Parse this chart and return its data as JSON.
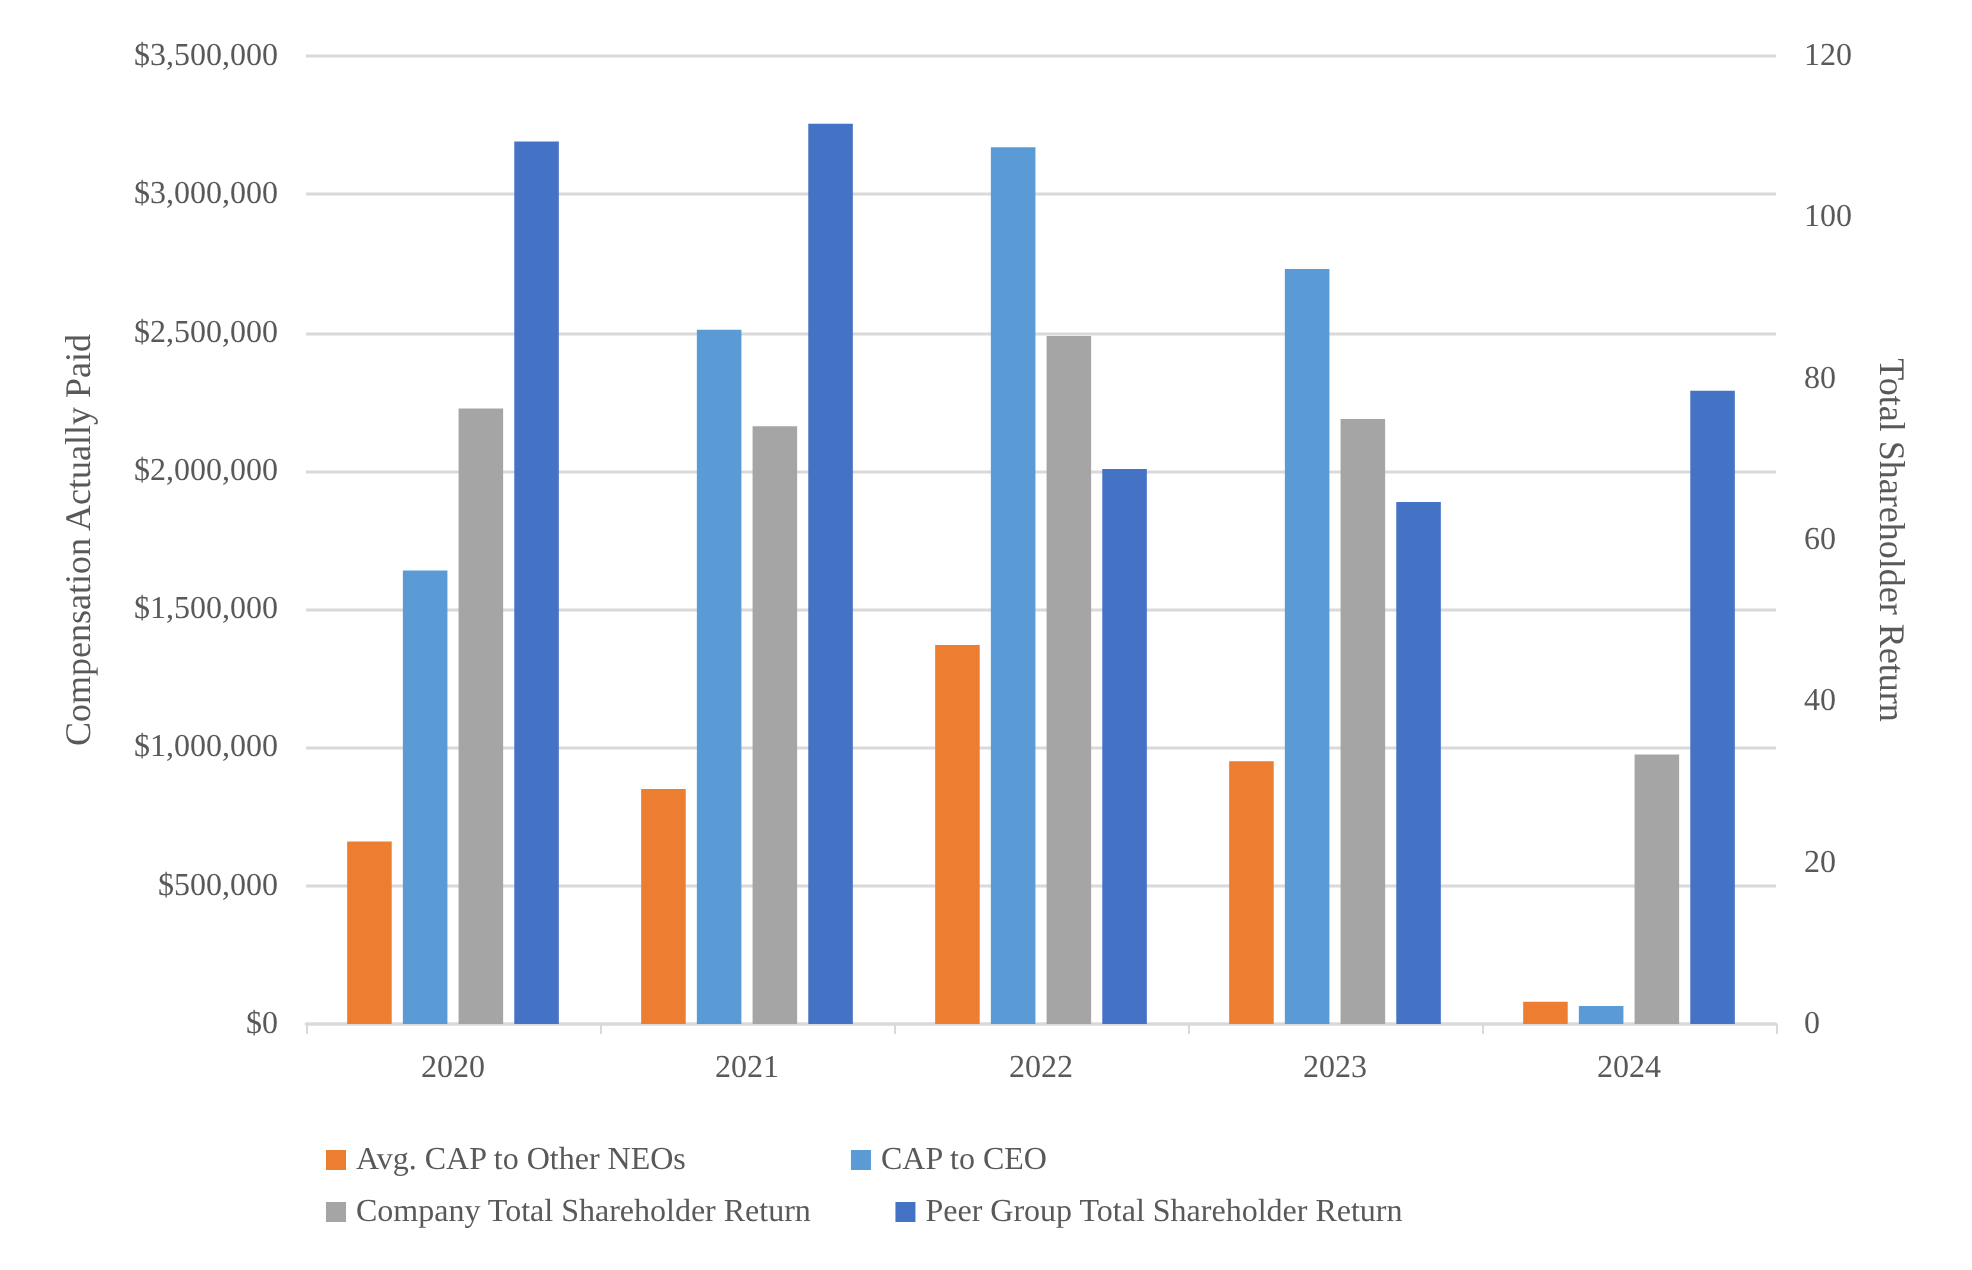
{
  "chart_data": {
    "type": "bar",
    "categories": [
      "2020",
      "2021",
      "2022",
      "2023",
      "2024"
    ],
    "ylabel": "Compensation Actually Paid",
    "y2label": "Total Shareholder Return",
    "ylim": [
      0,
      3500000
    ],
    "yticks": [
      {
        "value": 0,
        "label": "$0"
      },
      {
        "value": 500000,
        "label": "$500,000"
      },
      {
        "value": 1000000,
        "label": "$1,000,000"
      },
      {
        "value": 1500000,
        "label": "$1,500,000"
      },
      {
        "value": 2000000,
        "label": "$2,000,000"
      },
      {
        "value": 2500000,
        "label": "$2,500,000"
      },
      {
        "value": 3000000,
        "label": "$3,000,000"
      },
      {
        "value": 3500000,
        "label": "$3,500,000"
      }
    ],
    "y2lim": [
      0,
      120
    ],
    "y2ticks": [
      0,
      20,
      40,
      60,
      80,
      100,
      120
    ],
    "series": [
      {
        "name": "Avg. CAP to Other NEOs",
        "color": "#ed7d31",
        "values": [
          660000,
          850000,
          1370000,
          950000,
          80000
        ]
      },
      {
        "name": "CAP to CEO",
        "color": "#5b9bd5",
        "values": [
          1640000,
          2510000,
          3170000,
          2730000,
          65000
        ]
      },
      {
        "name": "Company Total Shareholder Return",
        "color": "#a5a5a5",
        "axis": "y2",
        "values": [
          76.3,
          74.1,
          85.3,
          75.0,
          33.4
        ]
      },
      {
        "name": "Peer Group Total Shareholder Return",
        "color": "#4472c4",
        "axis": "y2",
        "values": [
          109.4,
          111.6,
          68.8,
          64.7,
          78.5
        ]
      }
    ],
    "grid": "y",
    "legend": "bottom"
  }
}
